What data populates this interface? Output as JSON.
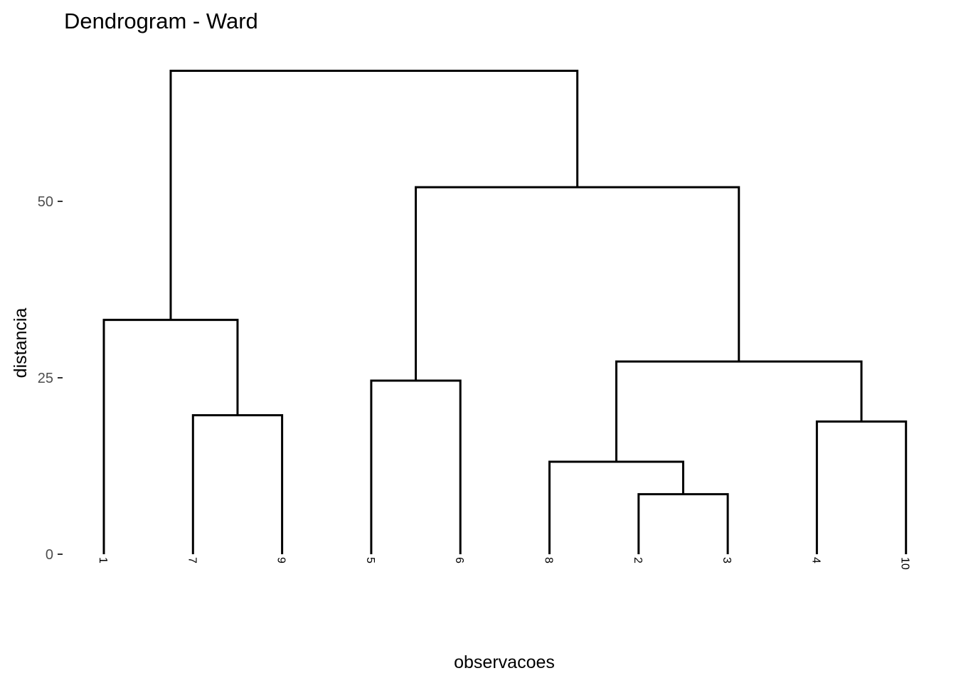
{
  "chart_data": {
    "type": "dendrogram",
    "title": "Dendrogram - Ward",
    "xlabel": "observacoes",
    "ylabel": "distancia",
    "ylim": [
      0,
      70
    ],
    "yticks": [
      0,
      25,
      50
    ],
    "leaves": [
      "1",
      "7",
      "9",
      "5",
      "6",
      "8",
      "2",
      "3",
      "4",
      "10"
    ],
    "merges": [
      {
        "id": "c1",
        "left": "2",
        "right": "3",
        "height": 8.5
      },
      {
        "id": "c2",
        "left": "8",
        "right": "c1",
        "height": 13.1
      },
      {
        "id": "c3",
        "left": "4",
        "right": "10",
        "height": 18.8
      },
      {
        "id": "c4",
        "left": "7",
        "right": "9",
        "height": 19.7
      },
      {
        "id": "c5",
        "left": "5",
        "right": "6",
        "height": 24.6
      },
      {
        "id": "c6",
        "left": "c2",
        "right": "c3",
        "height": 27.3
      },
      {
        "id": "c7",
        "left": "1",
        "right": "c4",
        "height": 33.2
      },
      {
        "id": "c8",
        "left": "c5",
        "right": "c6",
        "height": 52.0
      },
      {
        "id": "c9",
        "left": "c7",
        "right": "c8",
        "height": 68.5
      }
    ],
    "grid": false,
    "legend": "none"
  }
}
